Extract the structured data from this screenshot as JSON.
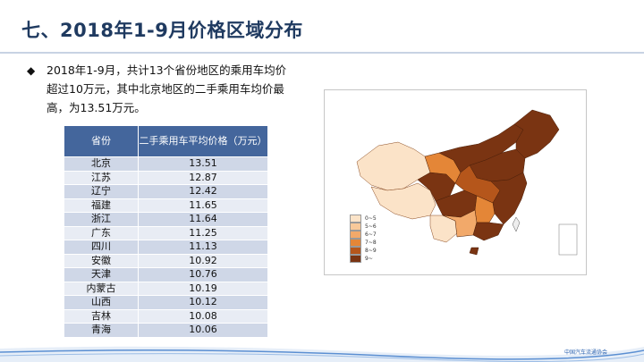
{
  "slide": {
    "title": "七、2018年1-9月价格区域分布",
    "bullet_symbol": "◆",
    "bullet_text": "2018年1-9月，共计13个省份地区的乘用车均价超过10万元，其中北京地区的二手乘用车均价最高，为13.51万元。"
  },
  "table": {
    "headers": [
      "省份",
      "二手乘用车平均价格（万元）"
    ],
    "rows": [
      {
        "province": "北京",
        "price": "13.51"
      },
      {
        "province": "江苏",
        "price": "12.87"
      },
      {
        "province": "辽宁",
        "price": "12.42"
      },
      {
        "province": "福建",
        "price": "11.65"
      },
      {
        "province": "浙江",
        "price": "11.64"
      },
      {
        "province": "广东",
        "price": "11.25"
      },
      {
        "province": "四川",
        "price": "11.13"
      },
      {
        "province": "安徽",
        "price": "10.92"
      },
      {
        "province": "天津",
        "price": "10.76"
      },
      {
        "province": "内蒙古",
        "price": "10.19"
      },
      {
        "province": "山西",
        "price": "10.12"
      },
      {
        "province": "吉林",
        "price": "10.08"
      },
      {
        "province": "青海",
        "price": "10.06"
      }
    ]
  },
  "map_legend": [
    {
      "label": "0~5",
      "color": "#fbe3c8"
    },
    {
      "label": "5~6",
      "color": "#f8c99a"
    },
    {
      "label": "6~7",
      "color": "#f2a96a"
    },
    {
      "label": "7~8",
      "color": "#e48637"
    },
    {
      "label": "8~9",
      "color": "#b5561b"
    },
    {
      "label": "9~",
      "color": "#7a3412"
    }
  ],
  "colors": {
    "title": "#1f3a60",
    "table_header": "#44669c",
    "row_odd": "#cfd7e7",
    "row_even": "#e8ecf4"
  },
  "footer": {
    "logo_text": "中国汽车流通协会"
  }
}
